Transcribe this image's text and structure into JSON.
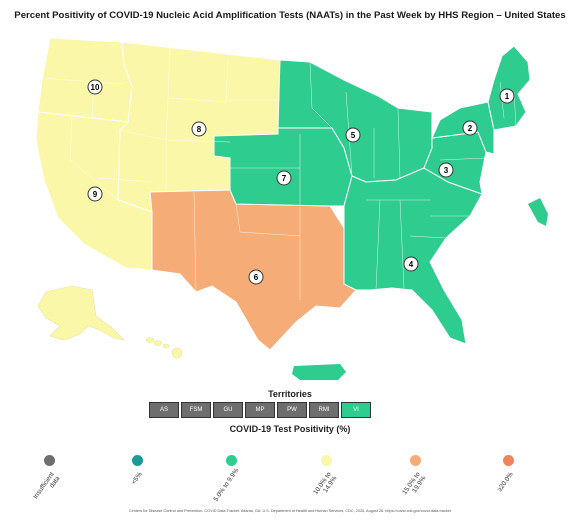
{
  "title": "Percent Positivity of COVID-19 Nucleic Acid Amplification Tests (NAATs) in the Past Week by HHS Region – United States",
  "regions": [
    {
      "number": "1",
      "category": "5.0% to 9.9%"
    },
    {
      "number": "2",
      "category": "5.0% to 9.9%"
    },
    {
      "number": "3",
      "category": "5.0% to 9.9%"
    },
    {
      "number": "4",
      "category": "5.0% to 9.9%"
    },
    {
      "number": "5",
      "category": "5.0% to 9.9%"
    },
    {
      "number": "6",
      "category": "15.0% to 19.9%"
    },
    {
      "number": "7",
      "category": "5.0% to 9.9%"
    },
    {
      "number": "8",
      "category": "10.0% to 14.9%"
    },
    {
      "number": "9",
      "category": "10.0% to 14.9%"
    },
    {
      "number": "10",
      "category": "10.0% to 14.9%"
    }
  ],
  "territories_title": "Territories",
  "territories": [
    {
      "label": "AS",
      "color": "#6e6e6e"
    },
    {
      "label": "FSM",
      "color": "#6e6e6e"
    },
    {
      "label": "GU",
      "color": "#6e6e6e"
    },
    {
      "label": "MP",
      "color": "#6e6e6e"
    },
    {
      "label": "PW",
      "color": "#6e6e6e"
    },
    {
      "label": "RMI",
      "color": "#6e6e6e"
    },
    {
      "label": "VI",
      "color": "#2ecc8f"
    }
  ],
  "legend_title": "COVID-19 Test Positivity (%)",
  "legend": [
    {
      "label": "Insufficient\ndata",
      "color": "#6e6e6e"
    },
    {
      "label": "<5%",
      "color": "#1a9a96"
    },
    {
      "label": "5.0% to 9.9%",
      "color": "#2ecc8f"
    },
    {
      "label": "10.0% to\n14.9%",
      "color": "#fbf7a8"
    },
    {
      "label": "15.0% to\n19.9%",
      "color": "#f6ac76"
    },
    {
      "label": "≥20.0%",
      "color": "#f0845c"
    }
  ],
  "colors": {
    "region_1_5": "#2ecc8f",
    "region_6": "#f6ac76",
    "region_8_9_10": "#fbf7a8"
  },
  "footer": "Centers for Disease Control and Prevention. COVID Data Tracker. Atlanta, GA: U.S. Department of Health and Human Services, CDC; 2025, August 28. https://covid.cdc.gov/covid-data-tracker"
}
